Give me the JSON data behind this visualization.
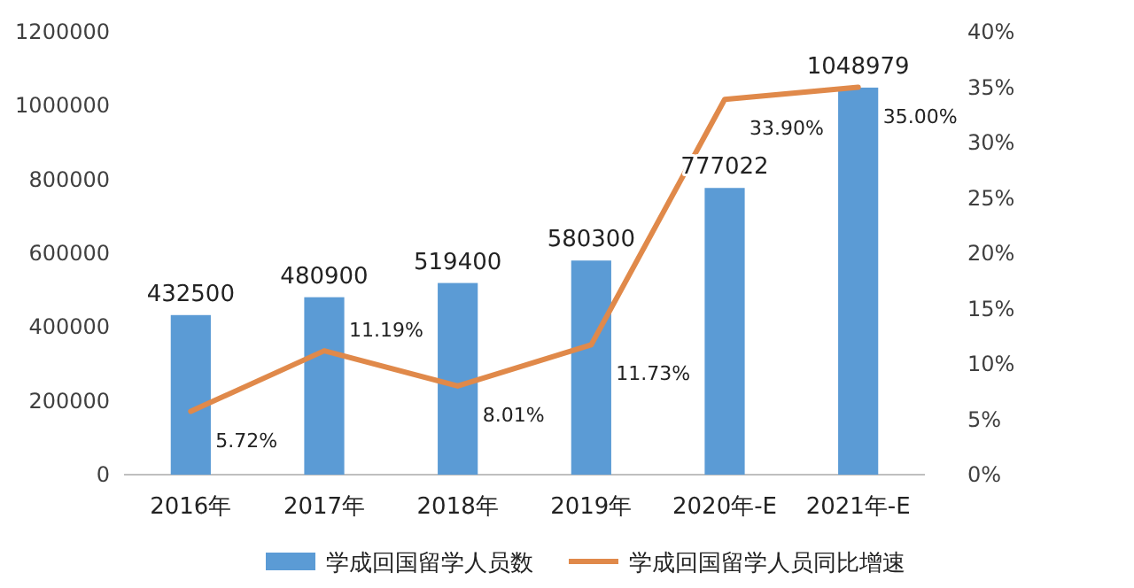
{
  "chart_data": {
    "type": "bar",
    "categories": [
      "2016年",
      "2017年",
      "2018年",
      "2019年",
      "2020年-E",
      "2021年-E"
    ],
    "series": [
      {
        "name": "学成回国留学人员数",
        "color": "#5b9bd5",
        "values": [
          432500,
          480900,
          519400,
          580300,
          777022,
          1048979
        ],
        "value_labels": [
          "432500",
          "480900",
          "519400",
          "580300",
          "777022",
          "1048979"
        ]
      },
      {
        "name": "学成回国留学人员同比增速",
        "type": "line",
        "axis": "y2",
        "color": "#e0894a",
        "values": [
          5.72,
          11.19,
          8.01,
          11.73,
          33.9,
          35.0
        ],
        "value_labels": [
          "5.72%",
          "11.19%",
          "8.01%",
          "11.73%",
          "33.90%",
          "35.00%"
        ]
      }
    ],
    "ylim": [
      0,
      1200000
    ],
    "yticks": [
      0,
      200000,
      400000,
      600000,
      800000,
      1000000,
      1200000
    ],
    "y2lim": [
      0,
      40
    ],
    "y2ticks": [
      {
        "value": 0,
        "label": "0%"
      },
      {
        "value": 5,
        "label": "5%"
      },
      {
        "value": 10,
        "label": "10%"
      },
      {
        "value": 15,
        "label": "15%"
      },
      {
        "value": 20,
        "label": "20%"
      },
      {
        "value": 25,
        "label": "25%"
      },
      {
        "value": 30,
        "label": "30%"
      },
      {
        "value": 35,
        "label": "35%"
      },
      {
        "value": 40,
        "label": "40%"
      }
    ],
    "legend": "bottom",
    "grid": false
  }
}
